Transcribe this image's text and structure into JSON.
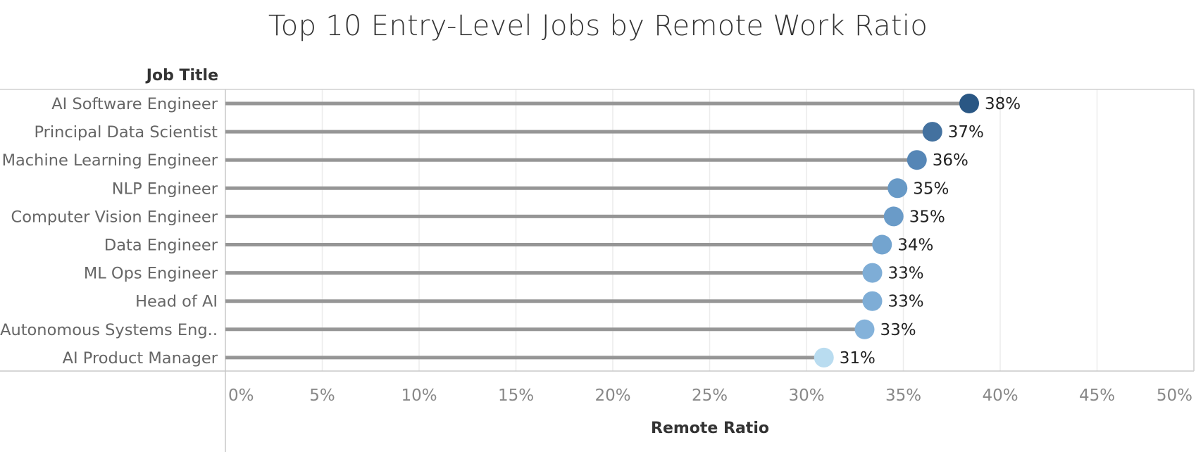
{
  "chart_data": {
    "type": "lollipop",
    "title": "Top 10 Entry-Level Jobs by Remote Work Ratio",
    "y_field_label": "Job Title",
    "xlabel": "Remote Ratio",
    "xlim": [
      0,
      0.5
    ],
    "x_ticks": [
      {
        "value": 0,
        "label": "0%"
      },
      {
        "value": 0.05,
        "label": "5%"
      },
      {
        "value": 0.1,
        "label": "10%"
      },
      {
        "value": 0.15,
        "label": "15%"
      },
      {
        "value": 0.2,
        "label": "20%"
      },
      {
        "value": 0.25,
        "label": "25%"
      },
      {
        "value": 0.3,
        "label": "30%"
      },
      {
        "value": 0.35,
        "label": "35%"
      },
      {
        "value": 0.4,
        "label": "40%"
      },
      {
        "value": 0.45,
        "label": "45%"
      },
      {
        "value": 0.5,
        "label": "50%"
      }
    ],
    "grid": "vertical",
    "categories": [
      "AI Software Engineer",
      "Principal Data Scientist",
      "Machine Learning Engineer",
      "NLP Engineer",
      "Computer Vision Engineer",
      "Data Engineer",
      "ML Ops Engineer",
      "Head of AI",
      "Autonomous Systems Eng..",
      "AI Product Manager"
    ],
    "values": [
      0.384,
      0.365,
      0.357,
      0.347,
      0.345,
      0.339,
      0.334,
      0.334,
      0.33,
      0.309
    ],
    "data_labels": [
      "38%",
      "37%",
      "36%",
      "35%",
      "35%",
      "34%",
      "33%",
      "33%",
      "33%",
      "31%"
    ],
    "colors": [
      "#2a5784",
      "#43719f",
      "#5586b6",
      "#6799c6",
      "#6a9bc8",
      "#73a4cf",
      "#7eadd6",
      "#7eadd6",
      "#84b2da",
      "#b9dcf0"
    ],
    "stem_color": "#969696"
  }
}
